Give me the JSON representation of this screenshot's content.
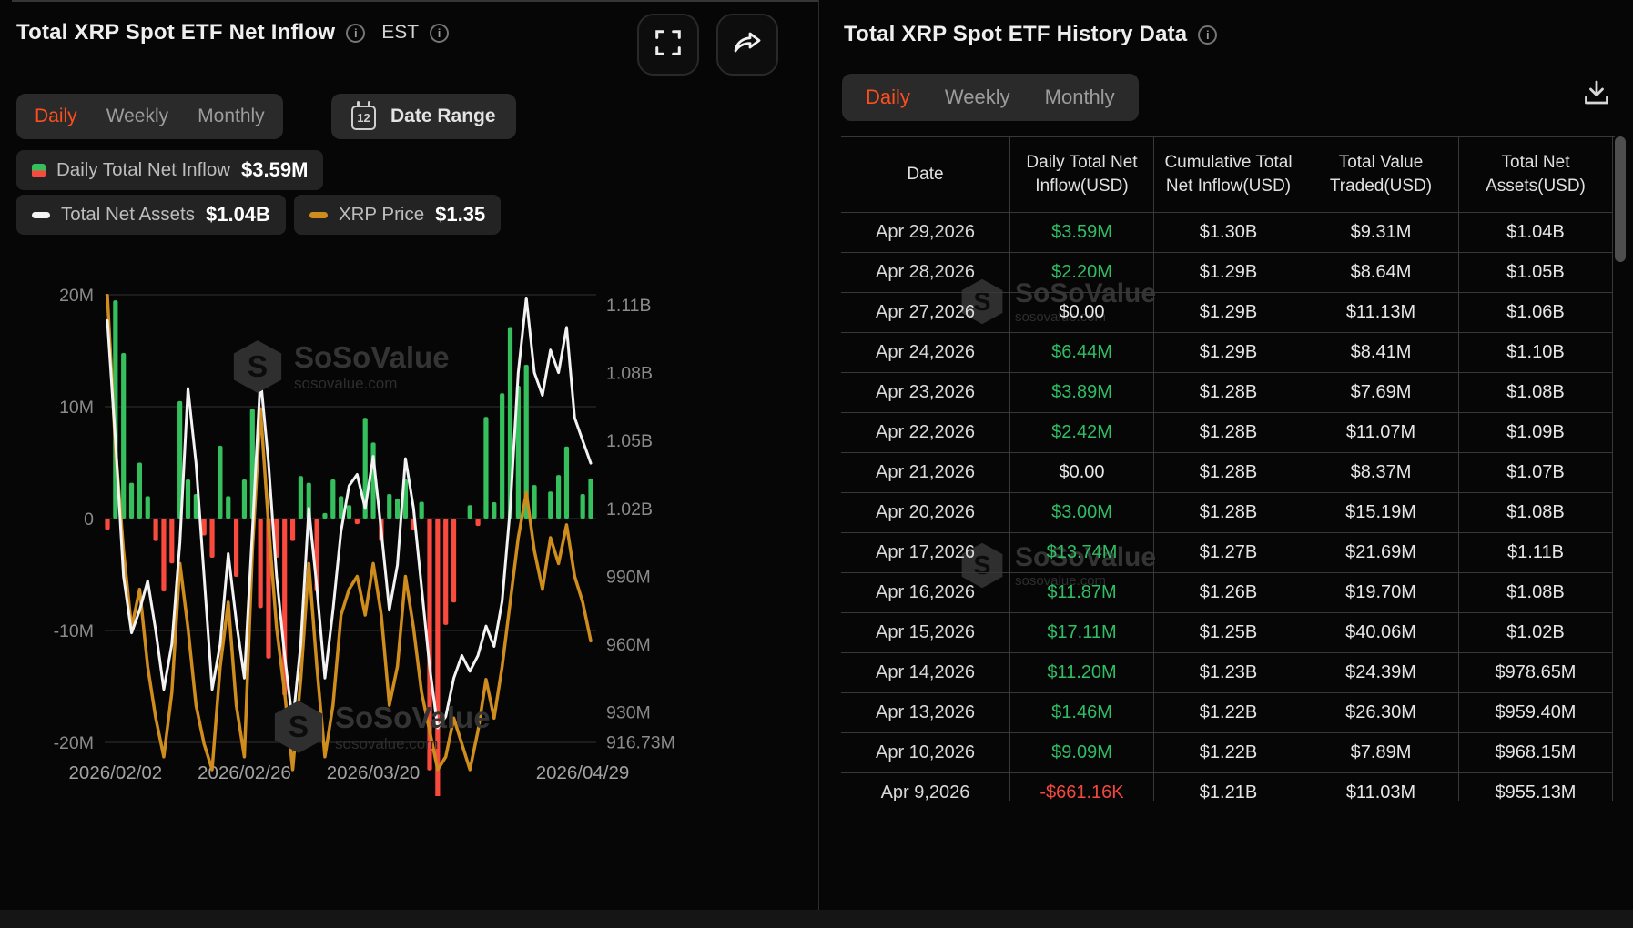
{
  "left_panel": {
    "title": "Total XRP Spot ETF Net Inflow",
    "timezone": "EST",
    "tabs": [
      "Daily",
      "Weekly",
      "Monthly"
    ],
    "active_tab": "Daily",
    "date_range_label": "Date Range",
    "legend": {
      "inflow": {
        "label": "Daily Total Net Inflow",
        "value": "$3.59M"
      },
      "assets": {
        "label": "Total Net Assets",
        "value": "$1.04B"
      },
      "price": {
        "label": "XRP Price",
        "value": "$1.35"
      }
    }
  },
  "icons": {
    "calendar_day": "12"
  },
  "watermark": {
    "name": "SoSoValue",
    "domain": "sosovalue.com",
    "logo_letter": "S"
  },
  "chart_data": {
    "type": "bar+line",
    "title": "Total XRP Spot ETF Net Inflow",
    "x_axis": {
      "labels": [
        "2026/02/02",
        "2026/02/26",
        "2026/03/20",
        "2026/04/29"
      ],
      "indices": [
        1,
        17,
        33,
        60
      ]
    },
    "left_axis": {
      "ticks": [
        "20M",
        "10M",
        "0",
        "-10M",
        "-20M"
      ],
      "values": [
        20,
        10,
        0,
        -10,
        -20
      ],
      "unit": "USD"
    },
    "right_axis": {
      "ticks": [
        "1.11B",
        "1.08B",
        "1.05B",
        "1.02B",
        "990M",
        "960M",
        "930M",
        "916.73M"
      ],
      "values": [
        1.11,
        1.08,
        1.05,
        1.02,
        0.99,
        0.96,
        0.93,
        0.91673
      ],
      "unit": "USD"
    },
    "series": [
      {
        "name": "Daily Total Net Inflow",
        "type": "bar",
        "unit": "M USD",
        "color_positive": "#35c05d",
        "color_negative": "#fa4a3e",
        "values": [
          -1,
          19.5,
          14.8,
          3.2,
          5,
          2,
          -2,
          -6.5,
          -4,
          10.5,
          3.5,
          2.2,
          -1.5,
          -3.5,
          6.5,
          2,
          -5.2,
          3.5,
          9.8,
          -8,
          -12.5,
          -3.5,
          -15.8,
          -2,
          3.8,
          3.2,
          -6.5,
          0.5,
          3.5,
          2,
          1.2,
          -0.5,
          9,
          6.8,
          -2,
          2.2,
          1.8,
          3.5,
          -1,
          1.5,
          -22.5,
          -25.5,
          -9.5,
          -7.5,
          0,
          1.2,
          -0.66,
          9.09,
          1.46,
          11.2,
          17.11,
          11.87,
          13.74,
          3,
          0,
          2.42,
          3.89,
          6.44,
          0,
          2.2,
          3.59
        ]
      },
      {
        "name": "Total Net Assets",
        "type": "line",
        "unit": "B USD",
        "color": "#f3f3f3",
        "values": [
          1.103,
          1.05,
          0.99,
          0.965,
          0.975,
          0.988,
          0.966,
          0.94,
          0.96,
          1.005,
          1.073,
          1.04,
          0.99,
          0.94,
          0.96,
          1.0,
          0.97,
          0.945,
          1.01,
          1.078,
          1.04,
          0.99,
          0.955,
          0.925,
          0.96,
          1.02,
          0.985,
          0.945,
          0.975,
          1.01,
          1.03,
          1.035,
          1.02,
          1.043,
          1.01,
          0.975,
          0.995,
          1.042,
          1.02,
          0.985,
          0.95,
          0.923,
          0.928,
          0.945,
          0.955,
          0.948,
          0.955,
          0.968,
          0.959,
          0.979,
          1.02,
          1.08,
          1.113,
          1.08,
          1.07,
          1.09,
          1.08,
          1.1,
          1.06,
          1.05,
          1.04
        ]
      },
      {
        "name": "XRP Price",
        "type": "line",
        "unit": "USD",
        "color": "#cf8d1e",
        "values": [
          1.618,
          1.5,
          1.42,
          1.36,
          1.39,
          1.33,
          1.29,
          1.26,
          1.31,
          1.41,
          1.36,
          1.3,
          1.27,
          1.25,
          1.33,
          1.38,
          1.3,
          1.26,
          1.42,
          1.53,
          1.44,
          1.36,
          1.31,
          1.25,
          1.32,
          1.41,
          1.33,
          1.26,
          1.3,
          1.37,
          1.39,
          1.4,
          1.37,
          1.41,
          1.37,
          1.3,
          1.33,
          1.4,
          1.36,
          1.31,
          1.28,
          1.25,
          1.26,
          1.29,
          1.27,
          1.25,
          1.28,
          1.32,
          1.29,
          1.33,
          1.38,
          1.43,
          1.465,
          1.42,
          1.39,
          1.43,
          1.41,
          1.44,
          1.4,
          1.38,
          1.35
        ]
      }
    ],
    "grid": true,
    "legend_position": "top-left"
  },
  "right_panel": {
    "title": "Total XRP Spot ETF History Data",
    "tabs": [
      "Daily",
      "Weekly",
      "Monthly"
    ],
    "active_tab": "Daily",
    "table": {
      "columns": [
        "Date",
        "Daily Total Net Inflow(USD)",
        "Cumulative Total Net Inflow(USD)",
        "Total Value Traded(USD)",
        "Total Net Assets(USD)"
      ],
      "rows": [
        {
          "date": "Apr 29,2026",
          "inflow": "$3.59M",
          "inflow_color": "green",
          "cumulative": "$1.30B",
          "traded": "$9.31M",
          "assets": "$1.04B"
        },
        {
          "date": "Apr 28,2026",
          "inflow": "$2.20M",
          "inflow_color": "green",
          "cumulative": "$1.29B",
          "traded": "$8.64M",
          "assets": "$1.05B"
        },
        {
          "date": "Apr 27,2026",
          "inflow": "$0.00",
          "inflow_color": "white",
          "cumulative": "$1.29B",
          "traded": "$11.13M",
          "assets": "$1.06B"
        },
        {
          "date": "Apr 24,2026",
          "inflow": "$6.44M",
          "inflow_color": "green",
          "cumulative": "$1.29B",
          "traded": "$8.41M",
          "assets": "$1.10B"
        },
        {
          "date": "Apr 23,2026",
          "inflow": "$3.89M",
          "inflow_color": "green",
          "cumulative": "$1.28B",
          "traded": "$7.69M",
          "assets": "$1.08B"
        },
        {
          "date": "Apr 22,2026",
          "inflow": "$2.42M",
          "inflow_color": "green",
          "cumulative": "$1.28B",
          "traded": "$11.07M",
          "assets": "$1.09B"
        },
        {
          "date": "Apr 21,2026",
          "inflow": "$0.00",
          "inflow_color": "white",
          "cumulative": "$1.28B",
          "traded": "$8.37M",
          "assets": "$1.07B"
        },
        {
          "date": "Apr 20,2026",
          "inflow": "$3.00M",
          "inflow_color": "green",
          "cumulative": "$1.28B",
          "traded": "$15.19M",
          "assets": "$1.08B"
        },
        {
          "date": "Apr 17,2026",
          "inflow": "$13.74M",
          "inflow_color": "green",
          "cumulative": "$1.27B",
          "traded": "$21.69M",
          "assets": "$1.11B"
        },
        {
          "date": "Apr 16,2026",
          "inflow": "$11.87M",
          "inflow_color": "green",
          "cumulative": "$1.26B",
          "traded": "$19.70M",
          "assets": "$1.08B"
        },
        {
          "date": "Apr 15,2026",
          "inflow": "$17.11M",
          "inflow_color": "green",
          "cumulative": "$1.25B",
          "traded": "$40.06M",
          "assets": "$1.02B"
        },
        {
          "date": "Apr 14,2026",
          "inflow": "$11.20M",
          "inflow_color": "green",
          "cumulative": "$1.23B",
          "traded": "$24.39M",
          "assets": "$978.65M"
        },
        {
          "date": "Apr 13,2026",
          "inflow": "$1.46M",
          "inflow_color": "green",
          "cumulative": "$1.22B",
          "traded": "$26.30M",
          "assets": "$959.40M"
        },
        {
          "date": "Apr 10,2026",
          "inflow": "$9.09M",
          "inflow_color": "green",
          "cumulative": "$1.22B",
          "traded": "$7.89M",
          "assets": "$968.15M"
        },
        {
          "date": "Apr 9,2026",
          "inflow": "-$661.16K",
          "inflow_color": "red",
          "cumulative": "$1.21B",
          "traded": "$11.03M",
          "assets": "$955.13M"
        }
      ]
    }
  }
}
